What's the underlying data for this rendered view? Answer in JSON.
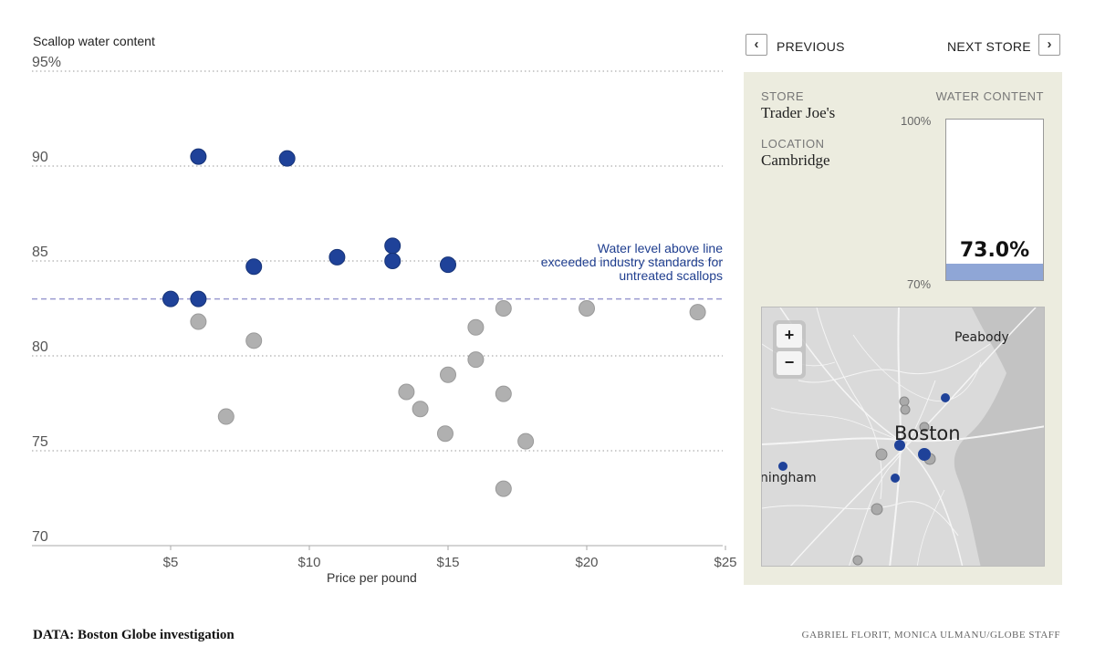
{
  "chart_data": {
    "type": "scatter",
    "ylabel": "Scallop water content",
    "xlabel": "Price per pound",
    "xlim": [
      0,
      25
    ],
    "ylim": [
      70,
      95
    ],
    "xticks": [
      5,
      10,
      15,
      20,
      25
    ],
    "xtick_labels": [
      "$5",
      "$10",
      "$15",
      "$20",
      "$25"
    ],
    "yticks": [
      70,
      75,
      80,
      85,
      90,
      95
    ],
    "ytick_labels": [
      "70",
      "75",
      "80",
      "85",
      "90",
      "95%"
    ],
    "grid": "horizontal dotted",
    "threshold": {
      "y": 83,
      "annotation": "Water level above line exceeded industry standards for untreated scallops"
    },
    "series": [
      {
        "color": "#1f4299",
        "points": [
          [
            6,
            90.5
          ],
          [
            9.2,
            90.4
          ],
          [
            8,
            84.7
          ],
          [
            11,
            85.2
          ],
          [
            13,
            85.8
          ],
          [
            13,
            85.0
          ],
          [
            15,
            84.8
          ],
          [
            5,
            83.0
          ],
          [
            6,
            83.0
          ]
        ]
      },
      {
        "color": "#b0b0b0",
        "points": [
          [
            6,
            81.8
          ],
          [
            8,
            80.8
          ],
          [
            7,
            76.8
          ],
          [
            13.5,
            78.1
          ],
          [
            14,
            77.2
          ],
          [
            15,
            79.0
          ],
          [
            14.9,
            75.9
          ],
          [
            16,
            81.5
          ],
          [
            16,
            79.8
          ],
          [
            17,
            82.5
          ],
          [
            17,
            78.0
          ],
          [
            17,
            73.0
          ],
          [
            17.8,
            75.5
          ],
          [
            20,
            82.5
          ],
          [
            24,
            82.3
          ]
        ]
      }
    ]
  },
  "nav": {
    "previous": "PREVIOUS",
    "next": "NEXT STORE",
    "prev_icon": "‹",
    "next_icon": "›"
  },
  "panel": {
    "store_label": "STORE",
    "store": "Trader Joe's",
    "location_label": "LOCATION",
    "location": "Cambridge",
    "water_label": "WATER CONTENT",
    "gauge_top": "100%",
    "gauge_bottom": "70%",
    "gauge_value": "73.0%",
    "gauge_fraction": 0.1
  },
  "map": {
    "zoom_in": "+",
    "zoom_out": "−",
    "labels": {
      "peabody": "Peabody",
      "boston": "Boston",
      "framingham": "ningham"
    }
  },
  "credits": {
    "source": "DATA: Boston Globe investigation",
    "byline": "GABRIEL FLORIT, MONICA ULMANU/GLOBE STAFF"
  }
}
